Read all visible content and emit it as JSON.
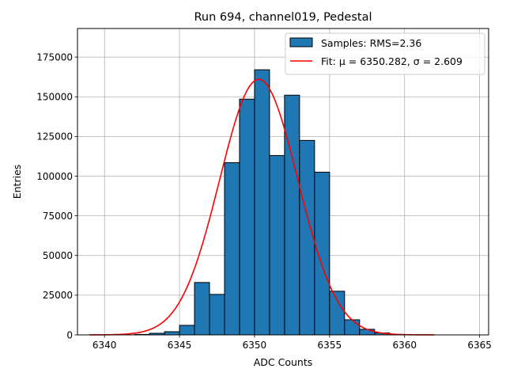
{
  "chart_data": {
    "type": "bar",
    "title": "Run 694, channel019, Pedestal",
    "xlabel": "ADC Counts",
    "ylabel": "Entries",
    "xlim": [
      6338.2,
      6365.6
    ],
    "ylim": [
      0,
      193000
    ],
    "grid": true,
    "legend_placement": "top-right",
    "x_ticks": [
      6340,
      6345,
      6350,
      6355,
      6360,
      6365
    ],
    "y_ticks": [
      0,
      25000,
      50000,
      75000,
      100000,
      125000,
      150000,
      175000
    ],
    "bin_width": 1,
    "series": [
      {
        "name": "Samples: RMS=2.36",
        "kind": "histogram",
        "color": "#1f77b4",
        "edgecolor": "#000000",
        "bins": [
          {
            "x": 6342.5,
            "value": 300
          },
          {
            "x": 6343.5,
            "value": 1000
          },
          {
            "x": 6344.5,
            "value": 2000
          },
          {
            "x": 6345.5,
            "value": 6000
          },
          {
            "x": 6346.5,
            "value": 33000
          },
          {
            "x": 6347.5,
            "value": 25500
          },
          {
            "x": 6348.5,
            "value": 108500
          },
          {
            "x": 6349.5,
            "value": 148500
          },
          {
            "x": 6350.5,
            "value": 167000
          },
          {
            "x": 6351.5,
            "value": 113000
          },
          {
            "x": 6352.5,
            "value": 151000
          },
          {
            "x": 6353.5,
            "value": 122500
          },
          {
            "x": 6354.5,
            "value": 102500
          },
          {
            "x": 6355.5,
            "value": 27500
          },
          {
            "x": 6356.5,
            "value": 9500
          },
          {
            "x": 6357.5,
            "value": 3500
          },
          {
            "x": 6358.5,
            "value": 1200
          },
          {
            "x": 6359.5,
            "value": 300
          }
        ]
      },
      {
        "name": "Fit: μ = 6350.282, σ = 2.609",
        "kind": "line",
        "color": "#ff0000",
        "fit": {
          "mu": 6350.282,
          "sigma": 2.609,
          "amplitude": 161000,
          "x_range": [
            6339,
            6362
          ]
        }
      }
    ]
  }
}
